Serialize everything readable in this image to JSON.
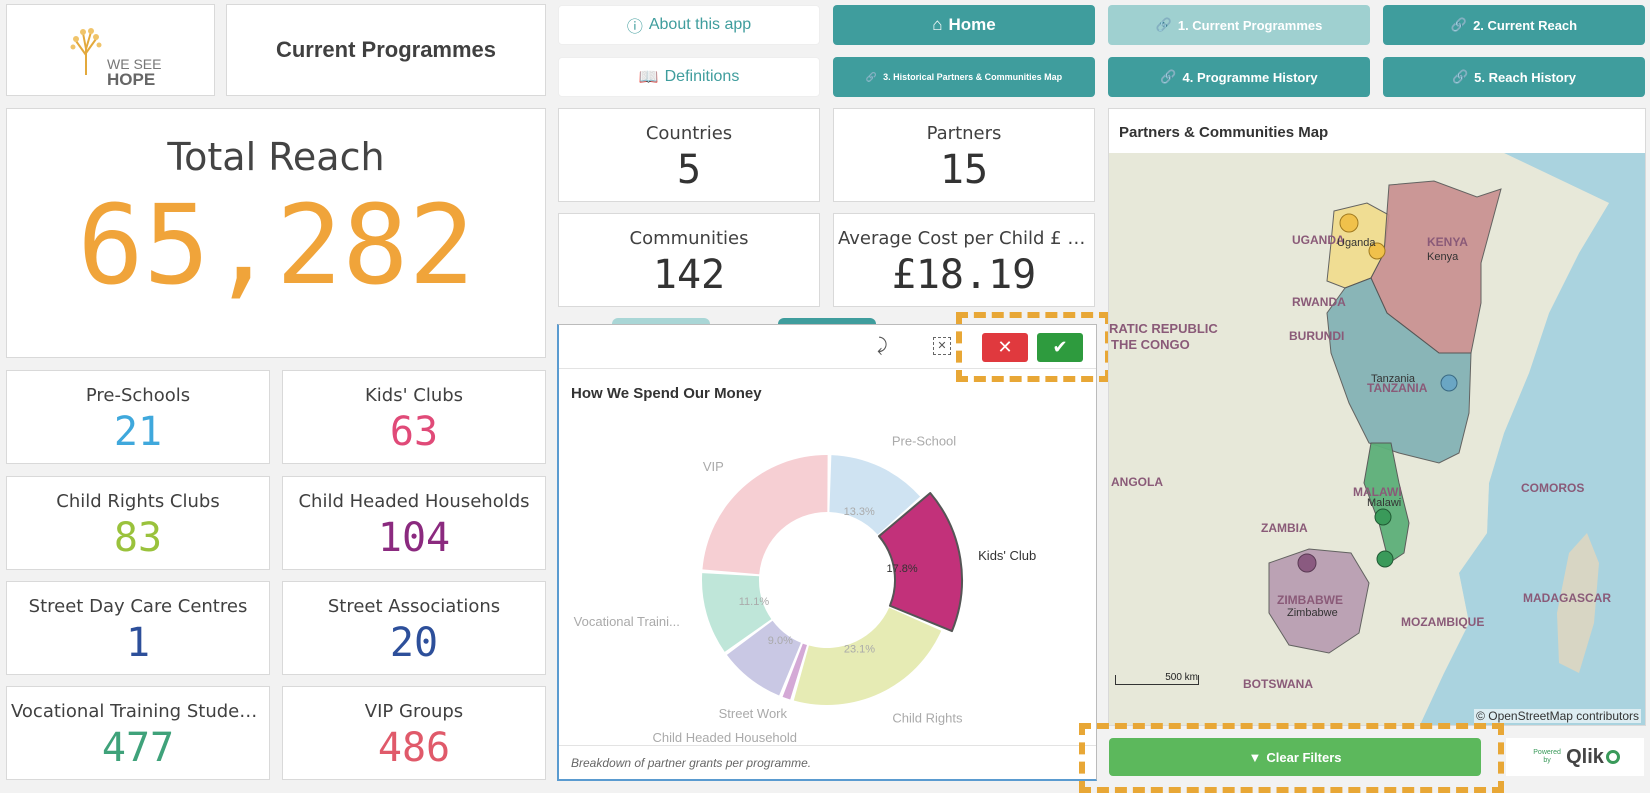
{
  "header": {
    "logo_line1": "WE SEE",
    "logo_line2": "HOPE",
    "page_title": "Current Programmes"
  },
  "nav": {
    "about": "About this app",
    "definitions": "Definitions",
    "home": "Home",
    "btn1": "1. Current Programmes",
    "btn2": "2. Current Reach",
    "btn3": "3. Historical Partners & Communities Map",
    "btn4": "4. Programme History",
    "btn5": "5. Reach History"
  },
  "total_reach": {
    "label": "Total Reach",
    "value": "65,282"
  },
  "kpis": {
    "countries": {
      "label": "Countries",
      "value": "5"
    },
    "partners": {
      "label": "Partners",
      "value": "15"
    },
    "communities": {
      "label": "Communities",
      "value": "142"
    },
    "avg_cost": {
      "label": "Average Cost per Child £ (Kids...",
      "value": "£18.19"
    }
  },
  "programmes": [
    {
      "label": "Pre-Schools",
      "value": "21",
      "color": "#3fa8dc"
    },
    {
      "label": "Kids' Clubs",
      "value": "63",
      "color": "#e04a78"
    },
    {
      "label": "Child Rights Clubs",
      "value": "83",
      "color": "#9ac23c"
    },
    {
      "label": "Child Headed Households",
      "value": "104",
      "color": "#8b2a7f"
    },
    {
      "label": "Street Day Care Centres",
      "value": "1",
      "color": "#2d4f9a"
    },
    {
      "label": "Street Associations",
      "value": "20",
      "color": "#2d4f9a"
    },
    {
      "label": "Vocational Training Students",
      "value": "477",
      "color": "#3fa27a"
    },
    {
      "label": "VIP Groups",
      "value": "486",
      "color": "#e05a6a"
    }
  ],
  "chart": {
    "title": "How We Spend Our Money",
    "footnote": "Breakdown of partner grants per programme.",
    "chart_data": {
      "type": "pie",
      "title": "How We Spend Our Money",
      "slices": [
        {
          "name": "Pre-School",
          "value": 13.3,
          "label": "13.3%",
          "color": "#cfe3f2"
        },
        {
          "name": "Kids' Club",
          "value": 17.8,
          "label": "17.8%",
          "color": "#c2317a"
        },
        {
          "name": "Child Rights",
          "value": 23.1,
          "label": "23.1%",
          "color": "#e6ebb4"
        },
        {
          "name": "Child Headed Household",
          "value": 1.5,
          "label": "",
          "color": "#d4a9d6"
        },
        {
          "name": "Street Work",
          "value": 9.0,
          "label": "9.0%",
          "color": "#c9c8e4"
        },
        {
          "name": "Vocational Traini...",
          "value": 11.1,
          "label": "11.1%",
          "color": "#bfe6d9"
        },
        {
          "name": "VIP",
          "value": 24.2,
          "label": "",
          "color": "#f6cfd3"
        }
      ],
      "selected": "Kids' Club"
    }
  },
  "map": {
    "title": "Partners & Communities Map",
    "attribution": "© OpenStreetMap contributors",
    "scale": "500 km",
    "labels": {
      "uganda_upper": "UGANDA",
      "uganda": "Uganda",
      "kenya_upper": "KENYA",
      "kenya": "Kenya",
      "rwanda": "RWANDA",
      "burundi": "BURUNDI",
      "drc_line1": "RATIC REPUBLIC",
      "drc_line2": "THE CONGO",
      "tanzania_upper": "TANZANIA",
      "tanzania": "Tanzania",
      "angola": "ANGOLA",
      "malawi_upper": "MALAWI",
      "malawi": "Malawi",
      "comoros": "COMOROS",
      "zambia": "ZAMBIA",
      "zimbabwe_upper": "ZIMBABWE",
      "zimbabwe": "Zimbabwe",
      "mozambique": "MOZAMBIQUE",
      "madagascar": "MADAGASCAR",
      "botswana": "BOTSWANA"
    }
  },
  "footer": {
    "clear_filters": "Clear Filters",
    "powered_by": "Powered by",
    "qlik": "Qlik"
  },
  "colors": {
    "accent": "#3f9d9d",
    "total_reach": "#f0a43a",
    "confirm": "#2e9b3e",
    "cancel": "#e0393e",
    "clear": "#5cb85c",
    "dash": "#e8a736"
  }
}
